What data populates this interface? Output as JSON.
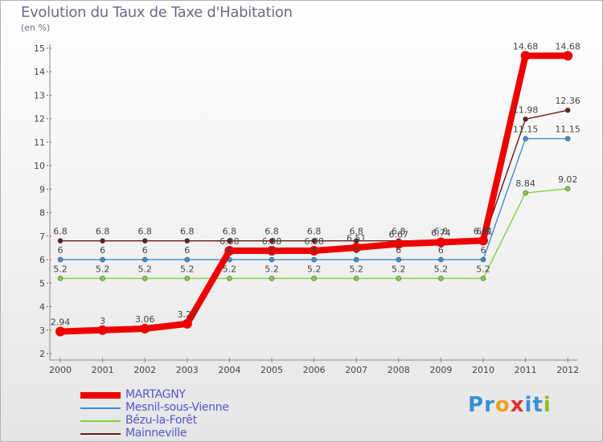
{
  "title": "Evolution du Taux de Taxe d'Habitation",
  "unit_label": "(en %)",
  "logo": {
    "letters": [
      "P",
      "r",
      "o",
      "x",
      "i",
      "t",
      "i"
    ],
    "colors": [
      "#3a8ed8",
      "#3a8ed8",
      "#f0a020",
      "#e03030",
      "#3a8ed8",
      "#3a8ed8",
      "#90c020"
    ]
  },
  "chart_data": {
    "type": "line",
    "title": "Evolution du Taux de Taxe d'Habitation",
    "ylabel": "(en %)",
    "xlabel": "",
    "x": [
      2000,
      2001,
      2002,
      2003,
      2004,
      2005,
      2006,
      2007,
      2008,
      2009,
      2010,
      2011,
      2012
    ],
    "x_labels": [
      "2000",
      "2001",
      "2002",
      "2003",
      "2004",
      "2005",
      "2006",
      "2007",
      "2008",
      "2009",
      "2010",
      "2011",
      "2012"
    ],
    "ylim": [
      2,
      15
    ],
    "y_ticks": [
      "2",
      "3",
      "4",
      "5",
      "6",
      "7",
      "8",
      "9",
      "10",
      "11",
      "12",
      "13",
      "14",
      "15"
    ],
    "grid": false,
    "legend_position": "bottom-left",
    "series": [
      {
        "name": "MARTAGNY",
        "color": "#ee0000",
        "values": [
          2.94,
          3,
          3.06,
          3.27,
          6.38,
          6.38,
          6.38,
          6.51,
          6.67,
          6.74,
          6.81,
          14.68,
          14.68
        ],
        "labels": [
          "2.94",
          "3",
          "3.06",
          "3.27",
          "6.38",
          "6.38",
          "6.38",
          "6.51",
          "6.67",
          "6.74",
          "6.81",
          "14.68",
          "14.68"
        ]
      },
      {
        "name": "Mesnil-sous-Vienne",
        "color": "#3a8ed0",
        "values": [
          6,
          6,
          6,
          6,
          6,
          6,
          6,
          6,
          6,
          6,
          6,
          11.15,
          11.15
        ],
        "labels": [
          "6",
          "6",
          "6",
          "6",
          "6",
          "6",
          "6",
          "6",
          "6",
          "6",
          "6",
          "11.15",
          "11.15"
        ]
      },
      {
        "name": "Bézu-la-Forêt",
        "color": "#80d040",
        "values": [
          5.2,
          5.2,
          5.2,
          5.2,
          5.2,
          5.2,
          5.2,
          5.2,
          5.2,
          5.2,
          5.2,
          8.84,
          9.02
        ],
        "labels": [
          "5.2",
          "5.2",
          "5.2",
          "5.2",
          "5.2",
          "5.2",
          "5.2",
          "5.2",
          "5.2",
          "5.2",
          "5.2",
          "8.84",
          "9.02"
        ]
      },
      {
        "name": "Mainneville",
        "color": "#6a1a1a",
        "values": [
          6.8,
          6.8,
          6.8,
          6.8,
          6.8,
          6.8,
          6.8,
          6.8,
          6.8,
          6.8,
          6.8,
          11.98,
          12.36
        ],
        "labels": [
          "6.8",
          "6.8",
          "6.8",
          "6.8",
          "6.8",
          "6.8",
          "6.8",
          "6.8",
          "6.8",
          "6.8",
          "6.8",
          "11.98",
          "12.36"
        ]
      }
    ]
  }
}
